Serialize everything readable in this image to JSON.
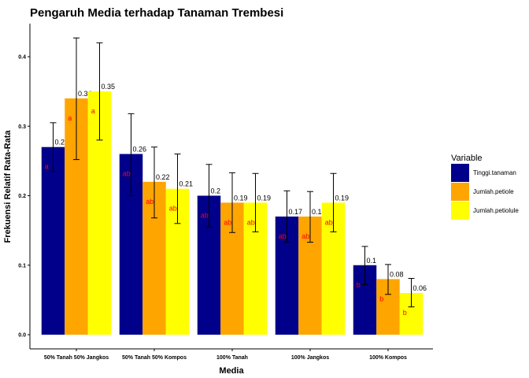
{
  "chart_data": {
    "type": "bar",
    "title": "Pengaruh Media terhadap Tanaman Trembesi",
    "xlabel": "Media",
    "ylabel": "Frekuensi Relatif Rata-Rata",
    "ylim": [
      0,
      0.44
    ],
    "yticks": [
      "0.0",
      "0.1",
      "0.2",
      "0.3",
      "0.4"
    ],
    "categories": [
      "50% Tanah 50% Jangkos",
      "50% Tanah 50% Kompos",
      "100% Tanah",
      "100% Jangkos",
      "100% Kompos"
    ],
    "legend": {
      "title": "Variable",
      "position": "right"
    },
    "grid": false,
    "series": [
      {
        "name": "Tinggi.tanaman",
        "color": "#00008B",
        "values": [
          0.27,
          0.26,
          0.2,
          0.17,
          0.1
        ],
        "labels": [
          "0.27",
          "0.26",
          "0.2",
          "0.17",
          "0.1"
        ],
        "err_low": [
          0.235,
          0.2,
          0.155,
          0.133,
          0.072
        ],
        "err_high": [
          0.305,
          0.318,
          0.245,
          0.207,
          0.127
        ],
        "significance": [
          "a",
          "ab",
          "ab",
          "ab",
          "b"
        ]
      },
      {
        "name": "Jumlah.petiole",
        "color": "#FFA500",
        "values": [
          0.34,
          0.22,
          0.19,
          0.17,
          0.08
        ],
        "labels": [
          "0.34",
          "0.22",
          "0.19",
          "0.17",
          "0.08"
        ],
        "err_low": [
          0.252,
          0.168,
          0.147,
          0.133,
          0.058
        ],
        "err_high": [
          0.427,
          0.27,
          0.233,
          0.206,
          0.101
        ],
        "significance": [
          "a",
          "ab",
          "ab",
          "ab",
          "b"
        ]
      },
      {
        "name": "Jumlah.petiolule",
        "color": "#FFFF00",
        "values": [
          0.35,
          0.21,
          0.19,
          0.19,
          0.06
        ],
        "labels": [
          "0.35",
          "0.21",
          "0.19",
          "0.19",
          "0.06"
        ],
        "err_low": [
          0.28,
          0.16,
          0.148,
          0.148,
          0.04
        ],
        "err_high": [
          0.42,
          0.26,
          0.232,
          0.232,
          0.081
        ],
        "significance": [
          "a",
          "ab",
          "ab",
          "ab",
          "b"
        ]
      }
    ]
  }
}
